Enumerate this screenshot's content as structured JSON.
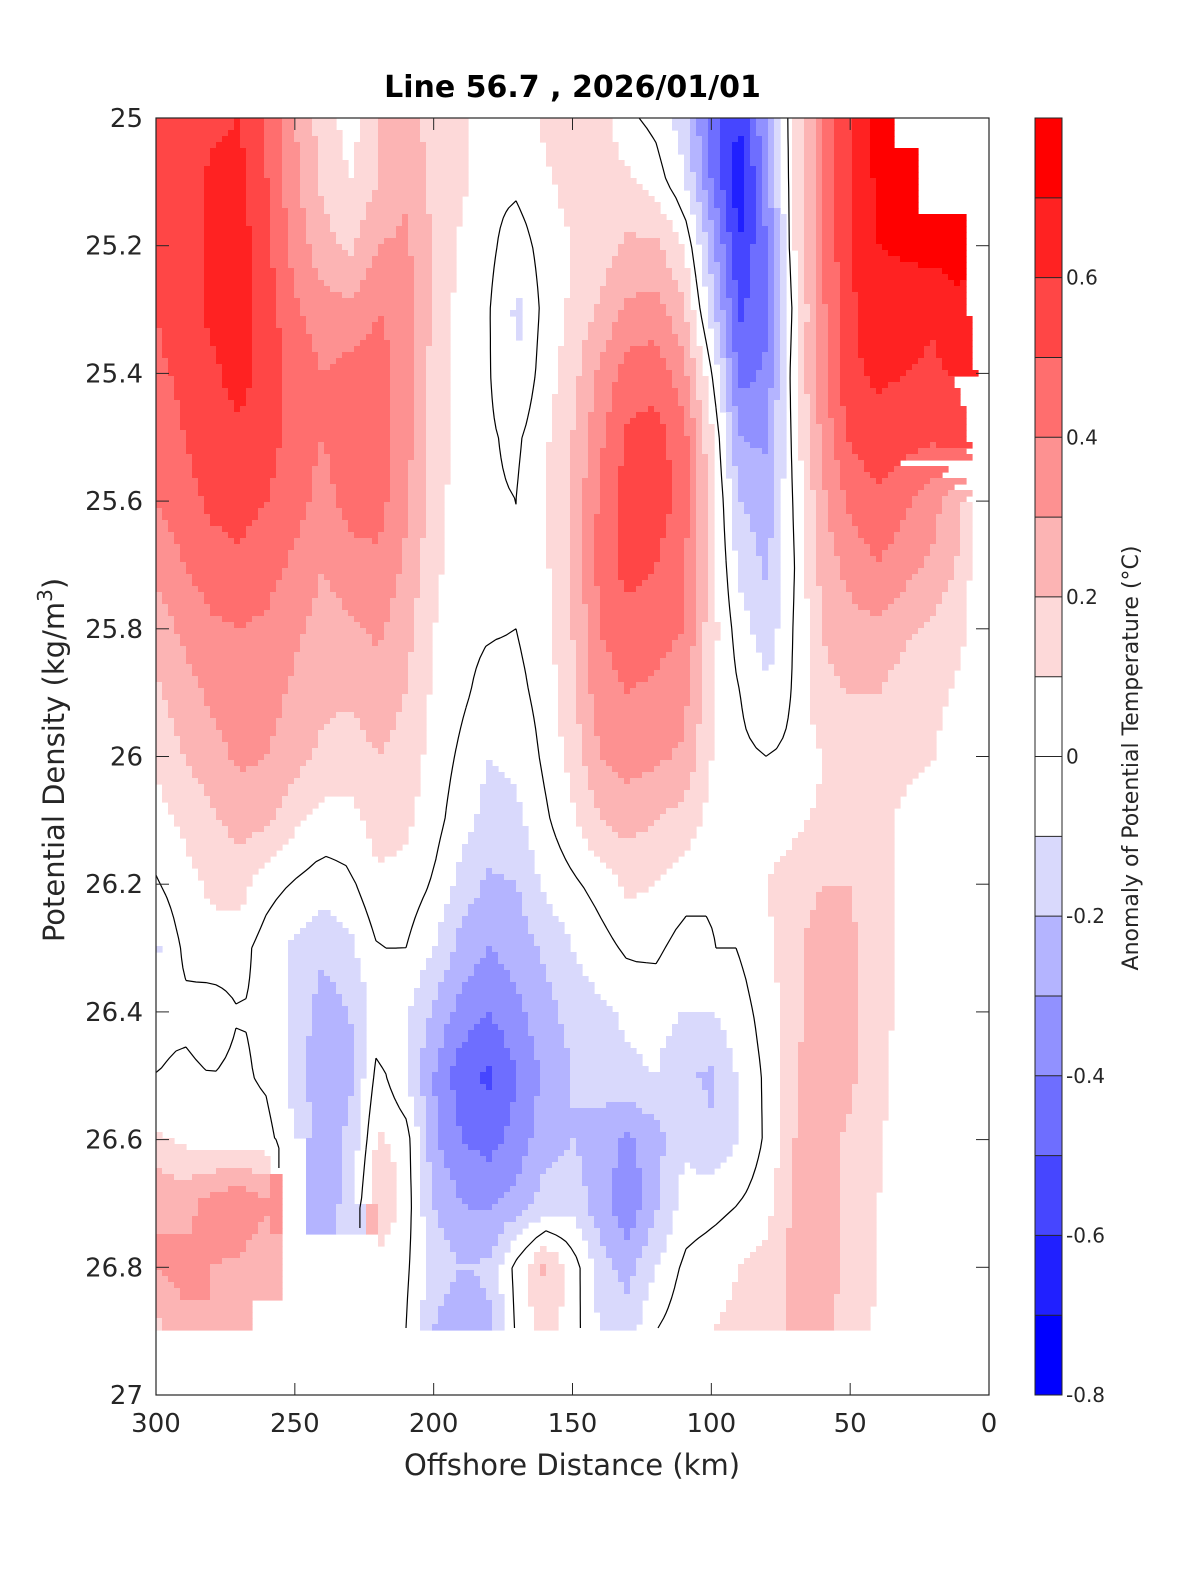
{
  "chart_data": {
    "type": "heatmap",
    "subtype": "filled-contour",
    "title": "Line 56.7 , 2026/01/01",
    "xlabel": "Offshore Distance (km)",
    "ylabel_main": "Potential Density (kg/m",
    "ylabel_sup": "3",
    "ylabel_close": ")",
    "colorbar_label": "Anomaly of Potential Temperature (°C)",
    "xlim": [
      300,
      0
    ],
    "ylim": [
      25,
      27
    ],
    "x_reversed": true,
    "y_reversed": true,
    "x_ticks": [
      300,
      250,
      200,
      150,
      100,
      50,
      0
    ],
    "x_tick_labels": [
      "300",
      "250",
      "200",
      "150",
      "100",
      "50",
      "0"
    ],
    "y_ticks": [
      25,
      25.2,
      25.4,
      25.6,
      25.8,
      26,
      26.2,
      26.4,
      26.6,
      26.8,
      27
    ],
    "y_tick_labels": [
      "25",
      "25.2",
      "25.4",
      "25.6",
      "25.8",
      "26",
      "26.2",
      "26.4",
      "26.6",
      "26.8",
      "27"
    ],
    "colorbar": {
      "clim": [
        -0.8,
        0.8
      ],
      "levels": [
        -0.8,
        -0.7,
        -0.6,
        -0.5,
        -0.4,
        -0.3,
        -0.2,
        -0.1,
        0,
        0.1,
        0.2,
        0.3,
        0.4,
        0.5,
        0.6,
        0.7,
        0.8
      ],
      "tick_values": [
        0.6,
        0.4,
        0.2,
        0,
        -0.2,
        -0.4,
        -0.6,
        -0.8
      ],
      "tick_labels": [
        "0.6",
        "0.4",
        "0.2",
        "0",
        "-0.2",
        "-0.4",
        "-0.6",
        "-0.8"
      ],
      "colors": [
        "#0000ff",
        "#2020ff",
        "#4646ff",
        "#6e6eff",
        "#9191ff",
        "#b4b4ff",
        "#d9d9fc",
        "#ffffff",
        "#ffffff",
        "#fdd9d9",
        "#fcb4b4",
        "#fd9191",
        "#ff6e6e",
        "#ff4646",
        "#ff2222",
        "#ff0000"
      ]
    },
    "zero_contour": true,
    "grid": false,
    "field": {
      "x_km": [
        300,
        290,
        280,
        270,
        260,
        250,
        240,
        230,
        220,
        210,
        200,
        190,
        180,
        170,
        160,
        150,
        140,
        130,
        120,
        110,
        100,
        90,
        80,
        70,
        60,
        50,
        40,
        30,
        20,
        10,
        5
      ],
      "density": [
        25.0,
        25.1,
        25.2,
        25.3,
        25.4,
        25.5,
        25.6,
        25.7,
        25.8,
        25.9,
        26.0,
        26.1,
        26.2,
        26.3,
        26.4,
        26.5,
        26.6,
        26.7,
        26.8,
        26.9
      ],
      "values": [
        [
          0.52,
          0.55,
          0.58,
          0.6,
          0.48,
          0.3,
          0.15,
          0.05,
          0.2,
          0.25,
          0.15,
          0.12,
          0.02,
          0.05,
          0.12,
          0.2,
          0.15,
          0.02,
          -0.03,
          -0.15,
          -0.45,
          -0.6,
          -0.3,
          0.1,
          0.4,
          0.6,
          0.75,
          null,
          null,
          null,
          null
        ],
        [
          0.52,
          0.56,
          0.62,
          0.64,
          0.5,
          0.33,
          0.18,
          0.1,
          0.2,
          0.28,
          0.18,
          0.12,
          0.02,
          0.02,
          0.08,
          0.14,
          0.15,
          0.12,
          0.05,
          -0.08,
          -0.4,
          -0.68,
          -0.35,
          0.1,
          0.4,
          0.6,
          0.72,
          0.76,
          null,
          null,
          null
        ],
        [
          0.52,
          0.56,
          0.62,
          0.65,
          0.52,
          0.36,
          0.24,
          0.18,
          0.3,
          0.32,
          0.18,
          0.08,
          0.02,
          -0.05,
          0.04,
          0.1,
          0.15,
          0.22,
          0.22,
          0.1,
          -0.25,
          -0.6,
          -0.4,
          0.1,
          0.4,
          0.6,
          0.7,
          0.72,
          0.74,
          0.75,
          null
        ],
        [
          0.5,
          0.56,
          0.62,
          0.65,
          0.55,
          0.42,
          0.34,
          0.32,
          0.4,
          0.36,
          0.18,
          0.06,
          0.01,
          -0.12,
          0.03,
          0.12,
          0.22,
          0.32,
          0.34,
          0.22,
          -0.15,
          -0.52,
          -0.42,
          0.05,
          0.38,
          0.58,
          0.66,
          0.64,
          0.62,
          0.68,
          0.72
        ],
        [
          0.48,
          0.52,
          0.58,
          0.64,
          0.56,
          0.46,
          0.4,
          0.44,
          0.44,
          0.36,
          0.16,
          0.05,
          0.01,
          -0.1,
          0.05,
          0.16,
          0.32,
          0.45,
          0.46,
          0.34,
          0.02,
          -0.44,
          -0.38,
          0.08,
          0.38,
          0.58,
          0.62,
          0.6,
          0.58,
          0.62,
          0.7
        ],
        [
          0.44,
          0.5,
          0.56,
          0.58,
          0.54,
          0.46,
          0.4,
          0.46,
          0.46,
          0.34,
          0.16,
          0.05,
          0.01,
          -0.02,
          0.08,
          0.2,
          0.38,
          0.52,
          0.54,
          0.44,
          0.12,
          -0.3,
          -0.32,
          0.05,
          0.32,
          0.52,
          0.56,
          0.54,
          0.52,
          0.56,
          0.68
        ],
        [
          0.4,
          0.46,
          0.52,
          0.54,
          0.5,
          0.44,
          0.36,
          0.44,
          0.44,
          0.32,
          0.15,
          0.04,
          0.01,
          0.0,
          0.1,
          0.22,
          0.42,
          0.55,
          0.56,
          0.46,
          0.15,
          -0.2,
          -0.26,
          0.02,
          0.28,
          0.42,
          0.48,
          0.42,
          0.34,
          0.2,
          0.1
        ],
        [
          0.32,
          0.4,
          0.46,
          0.48,
          0.44,
          0.38,
          0.3,
          0.36,
          0.38,
          0.28,
          0.13,
          0.03,
          0.01,
          0.0,
          0.08,
          0.22,
          0.44,
          0.54,
          0.5,
          0.42,
          0.14,
          -0.12,
          -0.22,
          0.0,
          0.24,
          0.34,
          0.4,
          0.34,
          0.28,
          0.18,
          0.05
        ],
        [
          0.25,
          0.32,
          0.38,
          0.4,
          0.38,
          0.32,
          0.26,
          0.28,
          0.32,
          0.24,
          0.1,
          0.03,
          0.01,
          0.0,
          0.06,
          0.2,
          0.4,
          0.46,
          0.44,
          0.4,
          0.14,
          -0.05,
          -0.16,
          0.01,
          0.2,
          0.26,
          0.28,
          0.22,
          0.18,
          0.12,
          0.05
        ],
        [
          0.18,
          0.26,
          0.32,
          0.36,
          0.34,
          0.28,
          0.22,
          0.22,
          0.26,
          0.2,
          0.08,
          0.02,
          -0.04,
          -0.03,
          0.04,
          0.18,
          0.36,
          0.4,
          0.38,
          0.34,
          0.12,
          0.0,
          -0.08,
          0.01,
          0.18,
          0.2,
          0.2,
          0.15,
          0.12,
          0.08,
          0.04
        ],
        [
          0.12,
          0.2,
          0.26,
          0.32,
          0.3,
          0.24,
          0.18,
          0.15,
          0.2,
          0.16,
          0.06,
          -0.02,
          -0.1,
          -0.08,
          0.02,
          0.14,
          0.3,
          0.34,
          0.32,
          0.28,
          0.1,
          0.02,
          0.0,
          0.02,
          0.1,
          0.14,
          0.16,
          0.12,
          0.1,
          0.06,
          0.04
        ],
        [
          0.06,
          0.12,
          0.18,
          0.24,
          0.22,
          0.12,
          0.06,
          0.06,
          0.15,
          0.12,
          0.04,
          -0.06,
          -0.14,
          -0.12,
          -0.02,
          0.08,
          0.2,
          0.24,
          0.2,
          0.16,
          0.06,
          0.06,
          0.06,
          0.08,
          0.12,
          0.14,
          0.12,
          0.08,
          0.06,
          0.04,
          0.04
        ],
        [
          -0.01,
          0.06,
          0.12,
          0.14,
          0.04,
          -0.01,
          -0.05,
          -0.02,
          0.08,
          0.06,
          -0.01,
          -0.14,
          -0.22,
          -0.2,
          -0.08,
          -0.02,
          0.04,
          0.12,
          0.1,
          0.04,
          0.0,
          0.04,
          0.1,
          0.14,
          0.2,
          0.2,
          0.14,
          0.08,
          0.05,
          0.04,
          0.04
        ],
        [
          -0.12,
          0.02,
          0.06,
          0.04,
          -0.05,
          -0.12,
          -0.18,
          -0.12,
          0.0,
          0.0,
          -0.1,
          -0.24,
          -0.3,
          -0.26,
          -0.18,
          -0.1,
          -0.04,
          0.02,
          0.02,
          -0.04,
          0.0,
          0.0,
          0.08,
          0.18,
          0.26,
          0.22,
          0.14,
          0.06,
          0.04,
          0.04,
          0.04
        ],
        [
          -0.03,
          -0.02,
          -0.05,
          0.0,
          -0.02,
          -0.12,
          -0.25,
          -0.2,
          -0.04,
          -0.08,
          -0.22,
          -0.34,
          -0.4,
          -0.32,
          -0.24,
          -0.16,
          -0.12,
          -0.08,
          -0.06,
          -0.1,
          -0.1,
          -0.04,
          0.04,
          0.16,
          0.3,
          0.22,
          0.14,
          0.06,
          0.04,
          0.04,
          0.04
        ],
        [
          0.0,
          0.02,
          0.0,
          0.02,
          -0.02,
          -0.14,
          -0.3,
          -0.22,
          0.04,
          -0.1,
          -0.3,
          -0.46,
          -0.52,
          -0.4,
          -0.28,
          -0.2,
          -0.16,
          -0.12,
          -0.1,
          -0.18,
          -0.22,
          -0.08,
          0.02,
          0.18,
          0.3,
          0.22,
          0.14,
          0.04,
          0.04,
          0.04,
          0.04
        ],
        [
          0.12,
          0.08,
          0.06,
          0.05,
          0.04,
          -0.1,
          -0.24,
          -0.18,
          0.12,
          0.05,
          -0.28,
          -0.4,
          -0.44,
          -0.36,
          -0.24,
          -0.2,
          -0.24,
          -0.32,
          -0.24,
          -0.12,
          -0.18,
          -0.1,
          0.02,
          0.2,
          0.24,
          0.18,
          0.12,
          0.02,
          0.04,
          0.04,
          0.04
        ],
        [
          0.3,
          0.26,
          0.34,
          0.4,
          0.32,
          null,
          -0.3,
          -0.14,
          0.22,
          0.05,
          -0.2,
          -0.3,
          -0.32,
          -0.26,
          -0.16,
          -0.14,
          -0.26,
          -0.38,
          -0.22,
          -0.06,
          -0.04,
          0.0,
          0.06,
          0.22,
          0.24,
          0.18,
          0.1,
          0.02,
          0.04,
          0.04,
          0.04
        ],
        [
          0.3,
          0.34,
          0.3,
          0.28,
          0.2,
          null,
          null,
          null,
          0.04,
          0.02,
          -0.14,
          -0.2,
          -0.18,
          0.04,
          0.22,
          0.06,
          -0.16,
          -0.24,
          -0.1,
          0.02,
          0.06,
          0.1,
          0.14,
          0.24,
          0.24,
          0.18,
          0.1,
          0.04,
          0.04,
          0.04,
          0.04
        ],
        [
          0.16,
          0.26,
          0.3,
          0.28,
          null,
          null,
          null,
          null,
          null,
          0.0,
          -0.2,
          -0.3,
          -0.22,
          0.02,
          0.14,
          0.04,
          -0.1,
          -0.14,
          0.0,
          0.06,
          0.1,
          0.12,
          0.14,
          0.22,
          0.24,
          0.14,
          0.08,
          0.04,
          0.04,
          0.04,
          0.04
        ]
      ]
    }
  }
}
